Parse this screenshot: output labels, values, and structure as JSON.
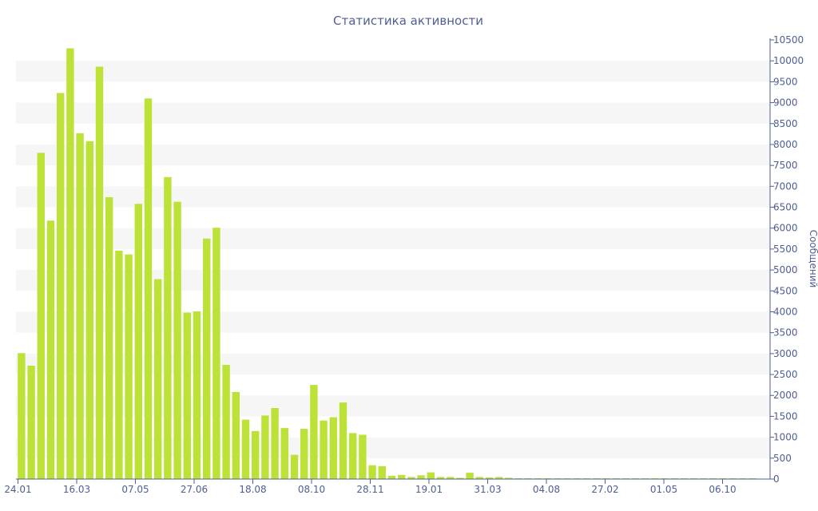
{
  "chart_data": {
    "type": "bar",
    "title": "Статистика активности",
    "xlabel": "",
    "ylabel": "Сообщений",
    "ylim": [
      0,
      10500
    ],
    "yticks": [
      0,
      500,
      1000,
      1500,
      2000,
      2500,
      3000,
      3500,
      4000,
      4500,
      5000,
      5500,
      6000,
      6500,
      7000,
      7500,
      8000,
      8500,
      9000,
      9500,
      10000,
      10500
    ],
    "xtick_labels": [
      "24.01",
      "16.03",
      "07.05",
      "27.06",
      "18.08",
      "08.10",
      "28.11",
      "19.01",
      "31.03",
      "04.08",
      "27.02",
      "01.05",
      "06.10"
    ],
    "x_start_label": "24.01",
    "values": [
      3010,
      2710,
      7800,
      6180,
      9230,
      10300,
      8270,
      8080,
      9860,
      6740,
      5460,
      5370,
      6580,
      9100,
      4780,
      7220,
      6630,
      3980,
      4010,
      5750,
      6010,
      2730,
      2080,
      1420,
      1150,
      1520,
      1700,
      1220,
      580,
      1200,
      2250,
      1400,
      1480,
      1830,
      1100,
      1060,
      330,
      310,
      80,
      100,
      50,
      90,
      160,
      50,
      50,
      30,
      150,
      50,
      40,
      50,
      30,
      20,
      20,
      20,
      20,
      20,
      20,
      20,
      20,
      20,
      20,
      20,
      20,
      20,
      20,
      20,
      20,
      20,
      20,
      20,
      20,
      20,
      20,
      20,
      20,
      20
    ],
    "grid": "horizontal alternating bands",
    "y_axis_position": "right",
    "legend": "none",
    "colors": {
      "bar": "#bce237",
      "band": "#f6f6f6",
      "axis": "#4f5e94",
      "text": "#4f5e94"
    }
  }
}
